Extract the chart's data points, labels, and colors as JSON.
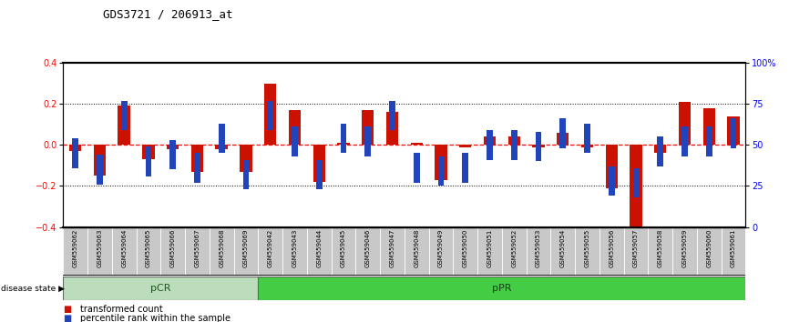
{
  "title": "GDS3721 / 206913_at",
  "samples": [
    "GSM559062",
    "GSM559063",
    "GSM559064",
    "GSM559065",
    "GSM559066",
    "GSM559067",
    "GSM559068",
    "GSM559069",
    "GSM559042",
    "GSM559043",
    "GSM559044",
    "GSM559045",
    "GSM559046",
    "GSM559047",
    "GSM559048",
    "GSM559049",
    "GSM559050",
    "GSM559051",
    "GSM559052",
    "GSM559053",
    "GSM559054",
    "GSM559055",
    "GSM559056",
    "GSM559057",
    "GSM559058",
    "GSM559059",
    "GSM559060",
    "GSM559061"
  ],
  "red_values": [
    -0.03,
    -0.15,
    0.19,
    -0.07,
    -0.02,
    -0.13,
    -0.02,
    -0.13,
    0.3,
    0.17,
    -0.18,
    0.01,
    0.17,
    0.16,
    0.01,
    -0.17,
    -0.01,
    0.04,
    0.04,
    -0.01,
    0.06,
    -0.01,
    -0.21,
    -0.4,
    -0.04,
    0.21,
    0.18,
    0.14
  ],
  "blue_pct": [
    45,
    35,
    68,
    40,
    44,
    36,
    54,
    32,
    68,
    52,
    32,
    54,
    52,
    68,
    36,
    34,
    36,
    50,
    50,
    49,
    57,
    54,
    28,
    27,
    46,
    52,
    52,
    57
  ],
  "pCR_count": 8,
  "pPR_count": 20,
  "ylim": [
    -0.4,
    0.4
  ],
  "yticks_left": [
    -0.4,
    -0.2,
    0.0,
    0.2,
    0.4
  ],
  "ytick_labels_right": [
    "0",
    "25",
    "50",
    "75",
    "100%"
  ],
  "yticks_right_vals": [
    0,
    25,
    50,
    75,
    100
  ],
  "red_color": "#cc1100",
  "blue_color": "#2244bb",
  "pCR_color": "#bbddbb",
  "pPR_color": "#44cc44",
  "label_bg_color": "#c8c8c8",
  "pCR_label": "pCR",
  "pPR_label": "pPR",
  "legend_red": "transformed count",
  "legend_blue": "percentile rank within the sample",
  "disease_state_text": "disease state",
  "red_bar_width": 0.5,
  "blue_marker_size": 0.18
}
